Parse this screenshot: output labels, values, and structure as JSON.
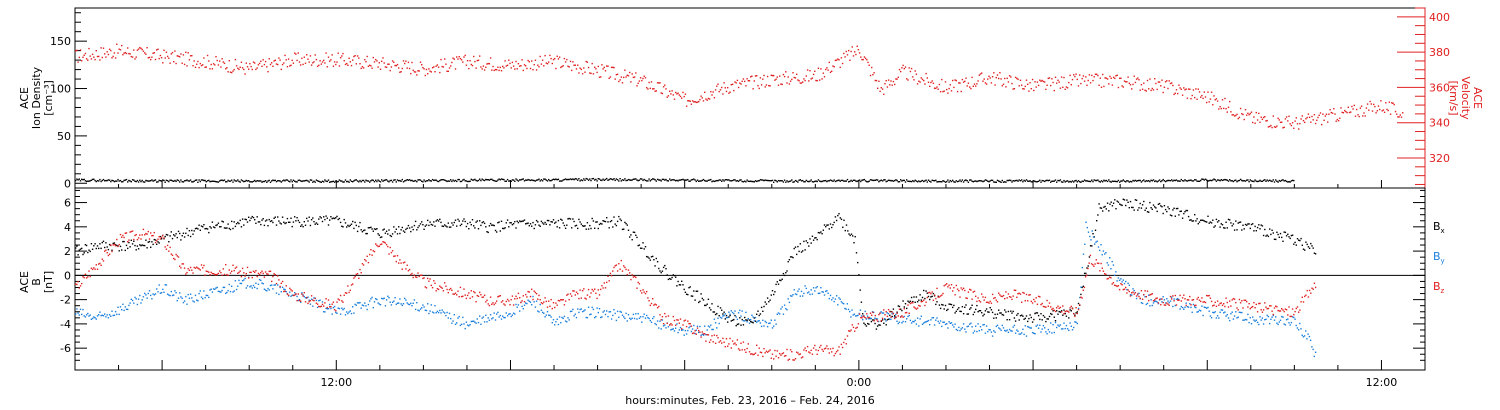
{
  "colors": {
    "axis": "#000000",
    "velocity": "#e02020",
    "density": "#000000",
    "bx": "#000000",
    "by": "#1a7fdc",
    "bz": "#e02020"
  },
  "xlabel": "hours:minutes, Feb. 23, 2016 – Feb. 24, 2016",
  "x_range_hours": [
    6,
    37
  ],
  "x_ticks": [
    {
      "h": 12,
      "label": "12:00"
    },
    {
      "h": 24,
      "label": "0:00"
    },
    {
      "h": 36,
      "label": "12:00"
    }
  ],
  "chart_data": [
    {
      "type": "scatter",
      "panel": "top",
      "ylabel": [
        "ACE",
        "Ion Density",
        "[cm⁻³]"
      ],
      "ylabel2": [
        "ACE",
        "Velocity",
        "[km/s]"
      ],
      "ylim": [
        -5,
        185
      ],
      "yticks": [
        0,
        50,
        100,
        150
      ],
      "ylim2": [
        303,
        405
      ],
      "yticks2": [
        320,
        340,
        360,
        380,
        400
      ],
      "series": [
        {
          "name": "Ion Density",
          "axis": "left",
          "color": "#000000",
          "points": [
            [
              6.0,
              4
            ],
            [
              8.0,
              3
            ],
            [
              10.0,
              3
            ],
            [
              12.0,
              3
            ],
            [
              14.0,
              3.5
            ],
            [
              16.0,
              4
            ],
            [
              18.0,
              4.5
            ],
            [
              20.0,
              4
            ],
            [
              22.0,
              3
            ],
            [
              24.0,
              3.5
            ],
            [
              26.0,
              3
            ],
            [
              28.0,
              3
            ],
            [
              30.0,
              3
            ],
            [
              32.0,
              4
            ],
            [
              34.0,
              3
            ]
          ]
        },
        {
          "name": "Velocity",
          "axis": "right",
          "color": "#e02020",
          "points": [
            [
              6.0,
              378
            ],
            [
              7.0,
              381
            ],
            [
              8.0,
              378
            ],
            [
              9.0,
              375
            ],
            [
              10.0,
              371
            ],
            [
              11.0,
              376
            ],
            [
              12.0,
              376
            ],
            [
              13.0,
              374
            ],
            [
              14.0,
              371
            ],
            [
              15.0,
              375
            ],
            [
              16.0,
              373
            ],
            [
              17.0,
              375
            ],
            [
              18.0,
              370
            ],
            [
              19.0,
              364
            ],
            [
              20.0,
              353
            ],
            [
              21.0,
              361
            ],
            [
              22.0,
              365
            ],
            [
              23.0,
              367
            ],
            [
              24.0,
              382
            ],
            [
              24.5,
              359
            ],
            [
              25.0,
              369
            ],
            [
              26.0,
              360
            ],
            [
              27.0,
              366
            ],
            [
              28.0,
              361
            ],
            [
              29.0,
              364
            ],
            [
              30.0,
              364
            ],
            [
              31.0,
              361
            ],
            [
              32.0,
              355
            ],
            [
              33.0,
              343
            ],
            [
              34.0,
              340
            ],
            [
              35.0,
              345
            ],
            [
              36.0,
              350
            ],
            [
              36.5,
              345
            ]
          ]
        }
      ]
    },
    {
      "type": "scatter",
      "panel": "bottom",
      "ylabel": [
        "ACE",
        "B",
        "[nT]"
      ],
      "ylim": [
        -7.8,
        7.2
      ],
      "yticks": [
        -6,
        -4,
        -2,
        0,
        2,
        4,
        6
      ],
      "legend": [
        "Bx",
        "By",
        "Bz"
      ],
      "series": [
        {
          "name": "Bx",
          "color": "#000000",
          "points": [
            [
              6.0,
              2.0
            ],
            [
              6.5,
              2.5
            ],
            [
              7.5,
              2.5
            ],
            [
              8.5,
              3.5
            ],
            [
              9.0,
              4.0
            ],
            [
              10.0,
              4.5
            ],
            [
              11.0,
              4.5
            ],
            [
              12.0,
              4.5
            ],
            [
              12.5,
              4.0
            ],
            [
              13.0,
              3.5
            ],
            [
              14.0,
              4.3
            ],
            [
              15.0,
              4.3
            ],
            [
              15.5,
              4.0
            ],
            [
              16.0,
              4.2
            ],
            [
              17.0,
              4.3
            ],
            [
              18.0,
              4.3
            ],
            [
              18.5,
              4.5
            ],
            [
              19.0,
              2.5
            ],
            [
              19.5,
              0.5
            ],
            [
              20.0,
              -1.0
            ],
            [
              21.0,
              -3.5
            ],
            [
              21.5,
              -4.0
            ],
            [
              22.0,
              -1.5
            ],
            [
              22.5,
              2.0
            ],
            [
              23.0,
              3.0
            ],
            [
              23.5,
              5.0
            ],
            [
              23.9,
              3.0
            ],
            [
              24.1,
              -3.8
            ],
            [
              24.5,
              -4.0
            ],
            [
              25.0,
              -2.5
            ],
            [
              25.5,
              -1.5
            ],
            [
              26.0,
              -2.5
            ],
            [
              27.0,
              -3.0
            ],
            [
              28.0,
              -3.5
            ],
            [
              29.0,
              -3.0
            ],
            [
              29.5,
              5.5
            ],
            [
              30.0,
              6.0
            ],
            [
              31.0,
              5.5
            ],
            [
              32.0,
              4.5
            ],
            [
              33.0,
              4.0
            ],
            [
              34.0,
              3.0
            ],
            [
              34.5,
              2.0
            ]
          ]
        },
        {
          "name": "By",
          "color": "#1a7fdc",
          "points": [
            [
              6.0,
              -3.0
            ],
            [
              6.5,
              -3.5
            ],
            [
              7.5,
              -2.0
            ],
            [
              8.0,
              -1.0
            ],
            [
              8.5,
              -2.0
            ],
            [
              9.5,
              -1.0
            ],
            [
              10.0,
              -0.5
            ],
            [
              11.0,
              -1.5
            ],
            [
              12.0,
              -3.0
            ],
            [
              13.0,
              -2.0
            ],
            [
              14.0,
              -2.5
            ],
            [
              15.0,
              -4.0
            ],
            [
              16.0,
              -3.0
            ],
            [
              16.5,
              -2.0
            ],
            [
              17.0,
              -4.0
            ],
            [
              17.5,
              -3.0
            ],
            [
              18.0,
              -3.0
            ],
            [
              19.0,
              -3.5
            ],
            [
              19.5,
              -4.0
            ],
            [
              20.0,
              -4.5
            ],
            [
              20.5,
              -4.5
            ],
            [
              21.0,
              -3.0
            ],
            [
              22.0,
              -4.0
            ],
            [
              22.5,
              -1.5
            ],
            [
              23.0,
              -1.0
            ],
            [
              23.5,
              -2.0
            ],
            [
              23.8,
              -3.0
            ],
            [
              24.1,
              -3.2
            ],
            [
              25.0,
              -3.5
            ],
            [
              26.0,
              -4.0
            ],
            [
              27.0,
              -4.5
            ],
            [
              28.0,
              -4.5
            ],
            [
              29.0,
              -4.0
            ],
            [
              29.2,
              4.0
            ],
            [
              29.6,
              2.0
            ],
            [
              30.0,
              -0.5
            ],
            [
              30.5,
              -2.0
            ],
            [
              31.0,
              -2.0
            ],
            [
              32.0,
              -3.0
            ],
            [
              33.0,
              -3.5
            ],
            [
              34.0,
              -3.8
            ],
            [
              34.3,
              -5.0
            ],
            [
              34.5,
              -7.0
            ]
          ]
        },
        {
          "name": "Bz",
          "color": "#e02020",
          "points": [
            [
              6.0,
              -1.0
            ],
            [
              6.5,
              1.0
            ],
            [
              7.0,
              3.0
            ],
            [
              7.5,
              3.5
            ],
            [
              8.0,
              3.0
            ],
            [
              8.5,
              0.5
            ],
            [
              9.5,
              0.5
            ],
            [
              10.5,
              0.0
            ],
            [
              11.0,
              -1.5
            ],
            [
              12.0,
              -2.5
            ],
            [
              13.0,
              3.0
            ],
            [
              13.5,
              1.0
            ],
            [
              14.0,
              -0.5
            ],
            [
              15.0,
              -1.5
            ],
            [
              15.5,
              -2.0
            ],
            [
              16.0,
              -2.0
            ],
            [
              16.5,
              -1.5
            ],
            [
              17.0,
              -2.5
            ],
            [
              17.5,
              -1.5
            ],
            [
              18.0,
              -1.5
            ],
            [
              18.5,
              1.0
            ],
            [
              19.0,
              -1.0
            ],
            [
              19.5,
              -3.5
            ],
            [
              20.0,
              -4.0
            ],
            [
              20.5,
              -5.0
            ],
            [
              21.0,
              -5.5
            ],
            [
              21.5,
              -6.0
            ],
            [
              22.0,
              -6.5
            ],
            [
              22.5,
              -6.5
            ],
            [
              23.0,
              -6.0
            ],
            [
              23.5,
              -6.3
            ],
            [
              24.0,
              -3.5
            ],
            [
              25.0,
              -3.0
            ],
            [
              25.5,
              -2.0
            ],
            [
              26.0,
              -1.0
            ],
            [
              27.0,
              -2.0
            ],
            [
              27.5,
              -1.5
            ],
            [
              28.0,
              -2.0
            ],
            [
              28.5,
              -2.5
            ],
            [
              29.0,
              -3.0
            ],
            [
              29.3,
              1.5
            ],
            [
              29.6,
              0.5
            ],
            [
              30.0,
              -1.0
            ],
            [
              30.5,
              -1.5
            ],
            [
              31.0,
              -2.0
            ],
            [
              32.0,
              -2.0
            ],
            [
              33.0,
              -2.5
            ],
            [
              34.0,
              -3.0
            ],
            [
              34.5,
              -0.5
            ]
          ]
        }
      ]
    }
  ]
}
